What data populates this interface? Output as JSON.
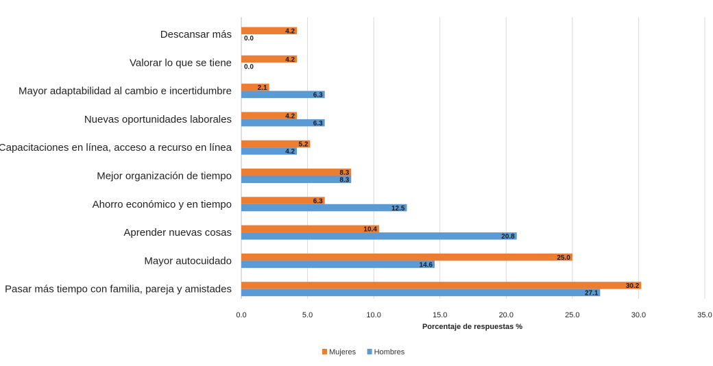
{
  "chart_data": {
    "type": "bar",
    "orientation": "horizontal",
    "categories": [
      "Descansar más",
      "Valorar lo que se tiene",
      "Mayor adaptabilidad al cambio e incertidumbre",
      "Nuevas oportunidades laborales",
      "Capacitaciones en línea, acceso a recurso en línea",
      "Mejor organización de tiempo",
      "Ahorro económico y en tiempo",
      "Aprender nuevas cosas",
      "Mayor autocuidado",
      "Pasar más tiempo con familia, pareja y amistades"
    ],
    "series": [
      {
        "name": "Mujeres",
        "color": "#ED7D31",
        "values": [
          4.2,
          4.2,
          2.1,
          4.2,
          5.2,
          8.3,
          6.3,
          10.4,
          25.0,
          30.2
        ]
      },
      {
        "name": "Hombres",
        "color": "#5B9BD5",
        "values": [
          0.0,
          0.0,
          6.3,
          6.3,
          4.2,
          8.3,
          12.5,
          20.8,
          14.6,
          27.1
        ]
      }
    ],
    "xlabel": "Porcentaje de respuestas %",
    "xlim": [
      0,
      35
    ],
    "xticks": [
      "0.0",
      "5.0",
      "10.0",
      "15.0",
      "20.0",
      "25.0",
      "30.0",
      "35.0"
    ],
    "grid": true,
    "legend": "bottom-center"
  }
}
